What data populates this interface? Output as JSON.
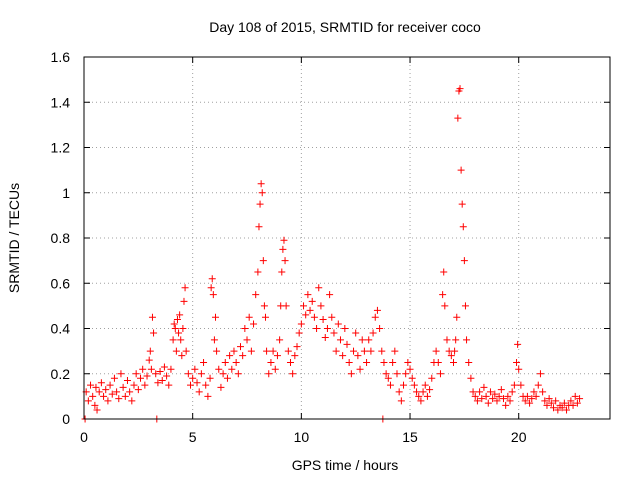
{
  "chart_data": {
    "type": "scatter",
    "title": "Day 108 of 2015, SRMTID for receiver coco",
    "xlabel": "GPS time / hours",
    "ylabel": "SRMTID / TECUs",
    "xlim": [
      0,
      24.2
    ],
    "ylim": [
      0,
      1.6
    ],
    "xticks": [
      0,
      5,
      10,
      15,
      20
    ],
    "yticks": [
      0,
      0.2,
      0.4,
      0.6,
      0.8,
      1,
      1.2,
      1.4,
      1.6
    ],
    "xtick_labels": [
      "0",
      "5",
      "10",
      "15",
      "20"
    ],
    "ytick_labels": [
      "0",
      "0.2",
      "0.4",
      "0.6",
      "0.8",
      "1",
      "1.2",
      "1.4",
      "1.6"
    ],
    "grid": true,
    "marker": "+",
    "color": "#ff0000",
    "series": [
      {
        "name": "SRMTID",
        "points": [
          [
            0.05,
            0.0
          ],
          [
            0.1,
            0.12
          ],
          [
            0.2,
            0.08
          ],
          [
            0.3,
            0.15
          ],
          [
            0.4,
            0.1
          ],
          [
            0.5,
            0.06
          ],
          [
            0.55,
            0.14
          ],
          [
            0.6,
            0.04
          ],
          [
            0.7,
            0.12
          ],
          [
            0.8,
            0.16
          ],
          [
            0.9,
            0.1
          ],
          [
            1.0,
            0.13
          ],
          [
            1.1,
            0.08
          ],
          [
            1.2,
            0.15
          ],
          [
            1.3,
            0.11
          ],
          [
            1.4,
            0.18
          ],
          [
            1.5,
            0.12
          ],
          [
            1.6,
            0.09
          ],
          [
            1.7,
            0.2
          ],
          [
            1.8,
            0.14
          ],
          [
            1.9,
            0.1
          ],
          [
            2.0,
            0.17
          ],
          [
            2.1,
            0.12
          ],
          [
            2.2,
            0.08
          ],
          [
            2.3,
            0.15
          ],
          [
            2.4,
            0.2
          ],
          [
            2.5,
            0.13
          ],
          [
            2.6,
            0.18
          ],
          [
            2.7,
            0.22
          ],
          [
            2.8,
            0.15
          ],
          [
            2.9,
            0.19
          ],
          [
            3.0,
            0.26
          ],
          [
            3.05,
            0.3
          ],
          [
            3.1,
            0.22
          ],
          [
            3.15,
            0.45
          ],
          [
            3.2,
            0.38
          ],
          [
            3.3,
            0.2
          ],
          [
            3.35,
            0.0
          ],
          [
            3.4,
            0.16
          ],
          [
            3.5,
            0.21
          ],
          [
            3.6,
            0.17
          ],
          [
            3.7,
            0.23
          ],
          [
            3.8,
            0.19
          ],
          [
            3.9,
            0.15
          ],
          [
            4.0,
            0.22
          ],
          [
            4.1,
            0.35
          ],
          [
            4.15,
            0.42
          ],
          [
            4.2,
            0.4
          ],
          [
            4.25,
            0.3
          ],
          [
            4.3,
            0.44
          ],
          [
            4.35,
            0.38
          ],
          [
            4.4,
            0.46
          ],
          [
            4.45,
            0.35
          ],
          [
            4.5,
            0.28
          ],
          [
            4.55,
            0.4
          ],
          [
            4.6,
            0.52
          ],
          [
            4.65,
            0.58
          ],
          [
            4.7,
            0.3
          ],
          [
            4.8,
            0.2
          ],
          [
            4.9,
            0.15
          ],
          [
            5.0,
            0.18
          ],
          [
            5.1,
            0.22
          ],
          [
            5.2,
            0.16
          ],
          [
            5.3,
            0.12
          ],
          [
            5.4,
            0.2
          ],
          [
            5.5,
            0.25
          ],
          [
            5.6,
            0.15
          ],
          [
            5.7,
            0.1
          ],
          [
            5.8,
            0.18
          ],
          [
            5.85,
            0.58
          ],
          [
            5.9,
            0.62
          ],
          [
            5.95,
            0.55
          ],
          [
            6.0,
            0.35
          ],
          [
            6.05,
            0.45
          ],
          [
            6.1,
            0.3
          ],
          [
            6.2,
            0.22
          ],
          [
            6.3,
            0.14
          ],
          [
            6.4,
            0.2
          ],
          [
            6.5,
            0.25
          ],
          [
            6.6,
            0.18
          ],
          [
            6.7,
            0.28
          ],
          [
            6.8,
            0.22
          ],
          [
            6.9,
            0.3
          ],
          [
            7.0,
            0.25
          ],
          [
            7.1,
            0.2
          ],
          [
            7.2,
            0.32
          ],
          [
            7.3,
            0.28
          ],
          [
            7.4,
            0.4
          ],
          [
            7.5,
            0.35
          ],
          [
            7.6,
            0.45
          ],
          [
            7.7,
            0.3
          ],
          [
            7.8,
            0.42
          ],
          [
            7.9,
            0.55
          ],
          [
            8.0,
            0.65
          ],
          [
            8.05,
            0.85
          ],
          [
            8.1,
            0.95
          ],
          [
            8.15,
            1.04
          ],
          [
            8.2,
            1.0
          ],
          [
            8.25,
            0.7
          ],
          [
            8.3,
            0.5
          ],
          [
            8.35,
            0.45
          ],
          [
            8.4,
            0.3
          ],
          [
            8.5,
            0.2
          ],
          [
            8.6,
            0.25
          ],
          [
            8.7,
            0.3
          ],
          [
            8.8,
            0.22
          ],
          [
            8.9,
            0.28
          ],
          [
            9.0,
            0.35
          ],
          [
            9.05,
            0.5
          ],
          [
            9.1,
            0.65
          ],
          [
            9.15,
            0.75
          ],
          [
            9.2,
            0.79
          ],
          [
            9.25,
            0.7
          ],
          [
            9.3,
            0.5
          ],
          [
            9.4,
            0.3
          ],
          [
            9.5,
            0.25
          ],
          [
            9.6,
            0.2
          ],
          [
            9.7,
            0.28
          ],
          [
            9.8,
            0.32
          ],
          [
            9.9,
            0.38
          ],
          [
            10.0,
            0.42
          ],
          [
            10.1,
            0.5
          ],
          [
            10.2,
            0.46
          ],
          [
            10.3,
            0.55
          ],
          [
            10.4,
            0.48
          ],
          [
            10.5,
            0.52
          ],
          [
            10.6,
            0.45
          ],
          [
            10.7,
            0.4
          ],
          [
            10.8,
            0.58
          ],
          [
            10.9,
            0.5
          ],
          [
            11.0,
            0.44
          ],
          [
            11.1,
            0.36
          ],
          [
            11.2,
            0.4
          ],
          [
            11.3,
            0.55
          ],
          [
            11.4,
            0.45
          ],
          [
            11.5,
            0.38
          ],
          [
            11.6,
            0.3
          ],
          [
            11.7,
            0.42
          ],
          [
            11.8,
            0.35
          ],
          [
            11.9,
            0.28
          ],
          [
            12.0,
            0.4
          ],
          [
            12.1,
            0.33
          ],
          [
            12.2,
            0.25
          ],
          [
            12.3,
            0.2
          ],
          [
            12.4,
            0.3
          ],
          [
            12.5,
            0.38
          ],
          [
            12.6,
            0.28
          ],
          [
            12.7,
            0.22
          ],
          [
            12.8,
            0.35
          ],
          [
            12.9,
            0.3
          ],
          [
            13.0,
            0.25
          ],
          [
            13.1,
            0.35
          ],
          [
            13.2,
            0.3
          ],
          [
            13.3,
            0.38
          ],
          [
            13.4,
            0.45
          ],
          [
            13.5,
            0.48
          ],
          [
            13.6,
            0.4
          ],
          [
            13.7,
            0.3
          ],
          [
            13.75,
            0.0
          ],
          [
            13.8,
            0.25
          ],
          [
            13.9,
            0.2
          ],
          [
            14.0,
            0.18
          ],
          [
            14.1,
            0.15
          ],
          [
            14.2,
            0.25
          ],
          [
            14.3,
            0.3
          ],
          [
            14.4,
            0.2
          ],
          [
            14.5,
            0.12
          ],
          [
            14.6,
            0.08
          ],
          [
            14.7,
            0.15
          ],
          [
            14.8,
            0.2
          ],
          [
            14.9,
            0.25
          ],
          [
            15.0,
            0.22
          ],
          [
            15.1,
            0.18
          ],
          [
            15.2,
            0.15
          ],
          [
            15.3,
            0.12
          ],
          [
            15.4,
            0.1
          ],
          [
            15.5,
            0.08
          ],
          [
            15.6,
            0.12
          ],
          [
            15.7,
            0.15
          ],
          [
            15.8,
            0.1
          ],
          [
            15.9,
            0.13
          ],
          [
            16.0,
            0.18
          ],
          [
            16.1,
            0.25
          ],
          [
            16.2,
            0.3
          ],
          [
            16.3,
            0.25
          ],
          [
            16.4,
            0.2
          ],
          [
            16.5,
            0.55
          ],
          [
            16.55,
            0.65
          ],
          [
            16.6,
            0.5
          ],
          [
            16.7,
            0.35
          ],
          [
            16.8,
            0.3
          ],
          [
            16.9,
            0.28
          ],
          [
            17.0,
            0.25
          ],
          [
            17.05,
            0.3
          ],
          [
            17.1,
            0.35
          ],
          [
            17.15,
            0.45
          ],
          [
            17.2,
            1.33
          ],
          [
            17.25,
            1.45
          ],
          [
            17.3,
            1.46
          ],
          [
            17.35,
            1.1
          ],
          [
            17.4,
            0.95
          ],
          [
            17.45,
            0.85
          ],
          [
            17.5,
            0.7
          ],
          [
            17.55,
            0.5
          ],
          [
            17.6,
            0.35
          ],
          [
            17.7,
            0.25
          ],
          [
            17.8,
            0.18
          ],
          [
            17.9,
            0.12
          ],
          [
            18.0,
            0.1
          ],
          [
            18.1,
            0.08
          ],
          [
            18.2,
            0.12
          ],
          [
            18.3,
            0.09
          ],
          [
            18.4,
            0.14
          ],
          [
            18.5,
            0.1
          ],
          [
            18.6,
            0.07
          ],
          [
            18.7,
            0.12
          ],
          [
            18.8,
            0.09
          ],
          [
            18.9,
            0.11
          ],
          [
            19.0,
            0.08
          ],
          [
            19.1,
            0.1
          ],
          [
            19.2,
            0.13
          ],
          [
            19.3,
            0.09
          ],
          [
            19.4,
            0.06
          ],
          [
            19.5,
            0.1
          ],
          [
            19.6,
            0.08
          ],
          [
            19.7,
            0.12
          ],
          [
            19.8,
            0.15
          ],
          [
            19.9,
            0.25
          ],
          [
            19.95,
            0.33
          ],
          [
            20.0,
            0.22
          ],
          [
            20.1,
            0.15
          ],
          [
            20.2,
            0.1
          ],
          [
            20.3,
            0.08
          ],
          [
            20.4,
            0.1
          ],
          [
            20.5,
            0.07
          ],
          [
            20.6,
            0.09
          ],
          [
            20.7,
            0.12
          ],
          [
            20.8,
            0.1
          ],
          [
            20.9,
            0.15
          ],
          [
            21.0,
            0.2
          ],
          [
            21.1,
            0.12
          ],
          [
            21.2,
            0.08
          ],
          [
            21.3,
            0.06
          ],
          [
            21.4,
            0.09
          ],
          [
            21.5,
            0.07
          ],
          [
            21.6,
            0.05
          ],
          [
            21.7,
            0.08
          ],
          [
            21.8,
            0.04
          ],
          [
            21.9,
            0.06
          ],
          [
            22.0,
            0.05
          ],
          [
            22.1,
            0.07
          ],
          [
            22.2,
            0.04
          ],
          [
            22.3,
            0.06
          ],
          [
            22.4,
            0.08
          ],
          [
            22.5,
            0.06
          ],
          [
            22.6,
            0.1
          ],
          [
            22.7,
            0.07
          ],
          [
            22.8,
            0.09
          ]
        ]
      }
    ]
  }
}
